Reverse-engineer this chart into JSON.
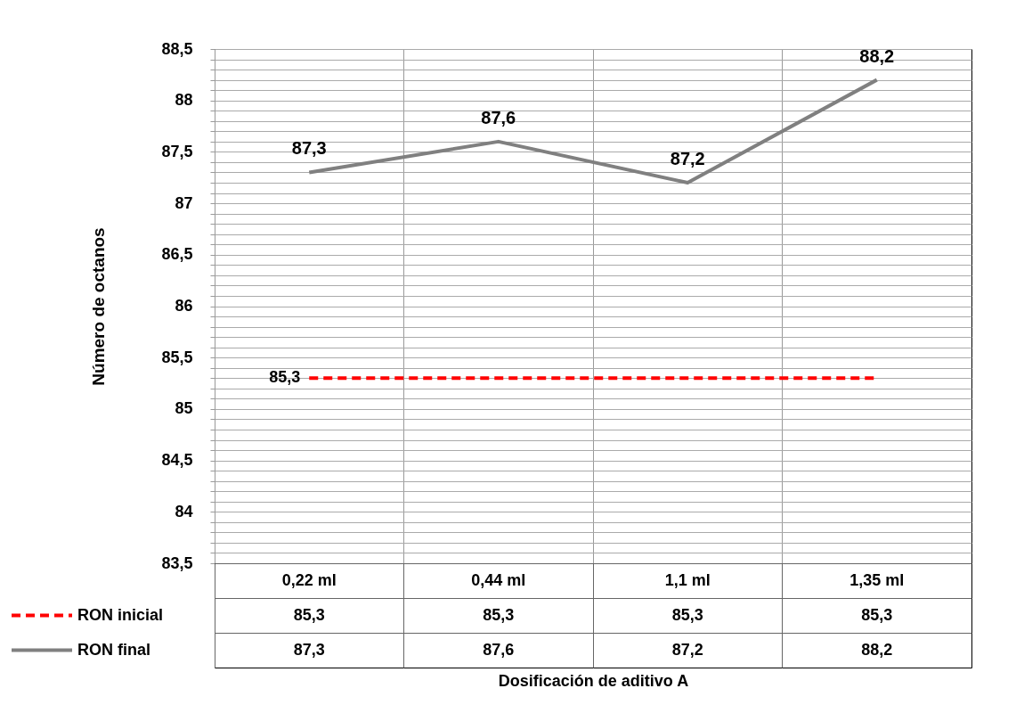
{
  "chart_data": {
    "type": "line",
    "annotations": [
      "Dosificación de aditivo A"
    ],
    "ylabel": "Número de octanos",
    "categories": [
      "0,22 ml",
      "0,44 ml",
      "1,1  ml",
      "1,35 ml"
    ],
    "series": [
      {
        "name": "RON inicial",
        "color": "#ff0000",
        "line_style": "dashed",
        "values": [
          85.3,
          85.3,
          85.3,
          85.3
        ],
        "value_labels": [
          "85,3",
          "85,3",
          "85,3",
          "85,3"
        ]
      },
      {
        "name": "RON final",
        "color": "#808080",
        "line_style": "solid",
        "values": [
          87.3,
          87.6,
          87.2,
          88.2
        ],
        "value_labels": [
          "87,3",
          "87,6",
          "87,2",
          "88,2"
        ]
      }
    ],
    "ylim": [
      83.5,
      88.5
    ],
    "yticks": [
      {
        "value": 83.5,
        "label": "83,5"
      },
      {
        "value": 83.6,
        "label": null
      },
      {
        "value": 83.7,
        "label": null
      },
      {
        "value": 83.8,
        "label": null
      },
      {
        "value": 83.9,
        "label": null
      },
      {
        "value": 84,
        "label": "84"
      },
      {
        "value": 84.1,
        "label": null
      },
      {
        "value": 84.2,
        "label": null
      },
      {
        "value": 84.3,
        "label": null
      },
      {
        "value": 84.4,
        "label": null
      },
      {
        "value": 84.5,
        "label": "84,5"
      },
      {
        "value": 84.6,
        "label": null
      },
      {
        "value": 84.7,
        "label": null
      },
      {
        "value": 84.8,
        "label": null
      },
      {
        "value": 84.9,
        "label": null
      },
      {
        "value": 85,
        "label": "85"
      },
      {
        "value": 85.1,
        "label": null
      },
      {
        "value": 85.2,
        "label": null
      },
      {
        "value": 85.3,
        "label": null
      },
      {
        "value": 85.4,
        "label": null
      },
      {
        "value": 85.5,
        "label": "85,5"
      },
      {
        "value": 85.6,
        "label": null
      },
      {
        "value": 85.7,
        "label": null
      },
      {
        "value": 85.8,
        "label": null
      },
      {
        "value": 85.9,
        "label": null
      },
      {
        "value": 86,
        "label": "86"
      },
      {
        "value": 86.1,
        "label": null
      },
      {
        "value": 86.2,
        "label": null
      },
      {
        "value": 86.3,
        "label": null
      },
      {
        "value": 86.4,
        "label": null
      },
      {
        "value": 86.5,
        "label": "86,5"
      },
      {
        "value": 86.6,
        "label": null
      },
      {
        "value": 86.7,
        "label": null
      },
      {
        "value": 86.8,
        "label": null
      },
      {
        "value": 86.9,
        "label": null
      },
      {
        "value": 87,
        "label": "87"
      },
      {
        "value": 87.1,
        "label": null
      },
      {
        "value": 87.2,
        "label": null
      },
      {
        "value": 87.3,
        "label": null
      },
      {
        "value": 87.4,
        "label": null
      },
      {
        "value": 87.5,
        "label": "87,5"
      },
      {
        "value": 87.6,
        "label": null
      },
      {
        "value": 87.7,
        "label": null
      },
      {
        "value": 87.8,
        "label": null
      },
      {
        "value": 87.9,
        "label": null
      },
      {
        "value": 88,
        "label": "88"
      },
      {
        "value": 88.1,
        "label": null
      },
      {
        "value": 88.2,
        "label": null
      },
      {
        "value": 88.3,
        "label": null
      },
      {
        "value": 88.4,
        "label": null
      },
      {
        "value": 88.5,
        "label": "88,5"
      }
    ],
    "grid": true,
    "legend": "bottom left",
    "marker": "none"
  }
}
